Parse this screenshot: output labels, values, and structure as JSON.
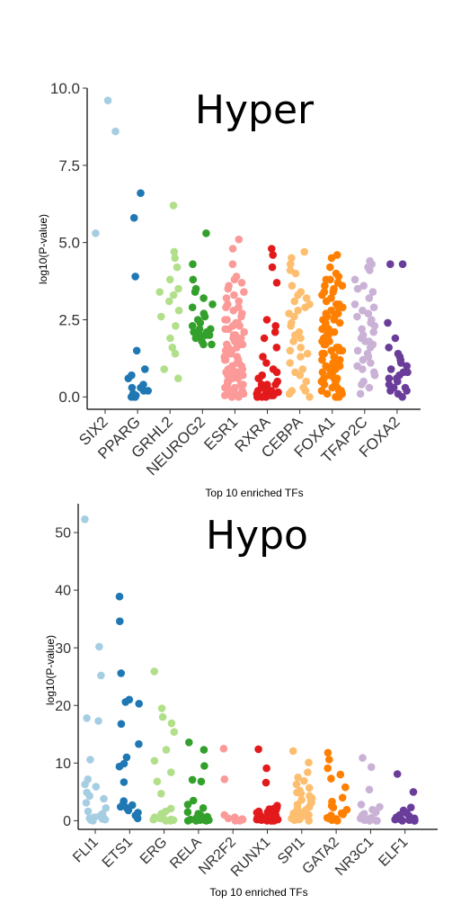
{
  "chart_data": [
    {
      "type": "scatter",
      "title": "Hyper",
      "xlabel": "Top 10 enriched TFs",
      "ylabel": "log10(P-value)",
      "ylim": [
        -0.4,
        10.0
      ],
      "yticks": [
        "0.0",
        "2.5",
        "5.0",
        "7.5",
        "10.0"
      ],
      "grid": false,
      "legend": "none",
      "categories": [
        "SIX2",
        "PPARG",
        "GRHL2",
        "NEUROG2",
        "ESR1",
        "RXRA",
        "CEBPA",
        "FOXA1",
        "TFAP2C",
        "FOXA2"
      ],
      "colors": [
        "#a6cee3",
        "#1f78b4",
        "#b2df8a",
        "#33a02c",
        "#fb9a99",
        "#e31a1c",
        "#fdbf6f",
        "#ff7f00",
        "#cab2d6",
        "#6a3d9a"
      ],
      "series": [
        {
          "points": [
            9.6,
            8.6,
            5.3
          ]
        },
        {
          "points": [
            6.6,
            5.8,
            3.9,
            1.5,
            0.9,
            0.7,
            0.6,
            0.4,
            0.3,
            0.2,
            0.1,
            0.05,
            0.0,
            0.0,
            0.1,
            0.2,
            0.0,
            0.3
          ]
        },
        {
          "points": [
            6.2,
            4.7,
            4.5,
            4.2,
            3.8,
            3.5,
            3.4,
            3.3,
            3.1,
            2.8,
            2.6,
            2.3,
            1.9,
            1.6,
            1.4,
            0.9,
            0.6
          ]
        },
        {
          "points": [
            5.3,
            4.3,
            3.8,
            3.5,
            3.4,
            3.2,
            3.0,
            2.7,
            2.5,
            2.3,
            2.2,
            2.1,
            2.0,
            2.0,
            1.9,
            1.8,
            1.7,
            2.2,
            2.4,
            2.6,
            1.7,
            2.9,
            2.0,
            2.1
          ]
        },
        {
          "points": [
            5.1,
            4.8,
            4.3,
            3.9,
            3.7,
            3.6,
            3.4,
            3.3,
            3.2,
            3.0,
            2.9,
            2.8,
            2.6,
            2.5,
            2.4,
            2.3,
            2.2,
            2.1,
            2.0,
            1.9,
            1.8,
            1.7,
            1.6,
            1.5,
            1.5,
            1.4,
            1.3,
            1.2,
            1.2,
            1.1,
            1.0,
            1.0,
            0.9,
            0.9,
            0.8,
            0.8,
            0.7,
            0.7,
            0.6,
            0.6,
            0.5,
            0.5,
            0.4,
            0.4,
            0.3,
            0.3,
            0.2,
            0.2,
            0.1,
            0.1,
            0.05,
            0.05,
            0.0,
            0.0,
            2.7,
            2.5,
            2.2,
            1.9,
            1.7,
            1.4,
            1.2,
            0.9,
            0.6,
            0.3,
            3.1,
            3.5,
            2.0,
            1.6,
            1.1,
            0.8,
            0.4,
            0.2,
            0.0,
            2.3,
            1.8,
            1.3,
            0.7,
            3.8,
            2.9,
            2.4
          ]
        },
        {
          "points": [
            4.8,
            4.6,
            4.2,
            3.7,
            2.5,
            2.3,
            2.1,
            1.9,
            1.6,
            1.3,
            1.1,
            0.9,
            0.8,
            0.7,
            0.6,
            0.5,
            0.4,
            0.4,
            0.3,
            0.3,
            0.2,
            0.2,
            0.15,
            0.1,
            0.1,
            0.05,
            0.05,
            0.0,
            0.0,
            0.0,
            0.6,
            0.2,
            0.3,
            0.1,
            0.0,
            0.4
          ]
        },
        {
          "points": [
            4.7,
            4.5,
            4.3,
            4.0,
            3.6,
            3.4,
            3.2,
            3.1,
            2.9,
            2.8,
            2.6,
            2.4,
            2.3,
            2.1,
            1.9,
            1.8,
            1.6,
            1.5,
            1.3,
            1.1,
            0.9,
            0.7,
            0.5,
            0.3,
            0.2,
            0.1,
            0.0,
            3.3,
            2.7,
            2.0,
            1.4,
            0.8,
            0.2,
            4.1,
            3.0
          ]
        },
        {
          "points": [
            4.6,
            4.5,
            4.2,
            4.0,
            3.9,
            3.8,
            3.7,
            3.6,
            3.5,
            3.4,
            3.3,
            3.2,
            3.1,
            3.0,
            2.9,
            2.8,
            2.7,
            2.6,
            2.5,
            2.4,
            2.3,
            2.2,
            2.1,
            2.0,
            1.9,
            1.8,
            1.7,
            1.6,
            1.5,
            1.4,
            1.3,
            1.2,
            1.1,
            1.0,
            0.9,
            0.8,
            0.7,
            0.6,
            0.5,
            0.4,
            0.3,
            0.2,
            0.1,
            0.0,
            2.5,
            2.2,
            1.9,
            1.6,
            1.3,
            1.0,
            0.7,
            0.4,
            0.1,
            3.4,
            3.0,
            2.7,
            2.4,
            2.1,
            1.8,
            1.5,
            1.2,
            0.9,
            0.6,
            0.3,
            0.0,
            2.0,
            1.7,
            1.4,
            1.1,
            0.8,
            0.5,
            0.2,
            2.9,
            2.6,
            2.3,
            1.0,
            0.2,
            3.8,
            3.6,
            1.5,
            0.6,
            0.0,
            2.4,
            1.9
          ]
        },
        {
          "points": [
            4.4,
            4.3,
            4.1,
            3.8,
            3.6,
            3.4,
            3.2,
            3.0,
            2.8,
            2.7,
            2.5,
            2.4,
            2.2,
            2.1,
            2.0,
            1.8,
            1.7,
            1.5,
            1.4,
            1.3,
            1.1,
            1.0,
            0.9,
            0.7,
            0.5,
            0.3,
            0.1,
            3.5,
            2.9,
            2.3,
            1.9,
            1.6,
            1.2,
            0.8,
            0.4,
            4.2,
            2.6,
            1.8
          ]
        },
        {
          "points": [
            4.3,
            4.3,
            2.4,
            1.9,
            1.6,
            1.4,
            1.2,
            1.0,
            0.9,
            0.8,
            0.7,
            0.6,
            0.5,
            0.4,
            0.3,
            0.2,
            0.1,
            0.0,
            1.1,
            0.6,
            0.3,
            0.8,
            0.2,
            1.3
          ]
        }
      ]
    },
    {
      "type": "scatter",
      "title": "Hypo",
      "xlabel": "Top 10 enriched TFs",
      "ylabel": "log10(P-value)",
      "ylim": [
        -1.5,
        55
      ],
      "yticks": [
        "0",
        "10",
        "20",
        "30",
        "40",
        "50"
      ],
      "grid": false,
      "legend": "none",
      "categories": [
        "FLI1",
        "ETS1",
        "ERG",
        "RELA",
        "NR2F2",
        "RUNX1",
        "SPI1",
        "GATA2",
        "NR3C1",
        "ELF1"
      ],
      "colors": [
        "#a6cee3",
        "#1f78b4",
        "#b2df8a",
        "#33a02c",
        "#fb9a99",
        "#e31a1c",
        "#fdbf6f",
        "#ff7f00",
        "#cab2d6",
        "#6a3d9a"
      ],
      "series": [
        {
          "points": [
            52.3,
            30.2,
            25.2,
            17.8,
            17.3,
            10.6,
            7.2,
            6.3,
            5.9,
            4.9,
            4.3,
            3.8,
            3.1,
            2.2,
            1.6,
            1.2,
            0.8,
            0.5,
            0.3,
            0.2,
            0.1,
            0.0,
            0.4,
            0.6
          ]
        },
        {
          "points": [
            38.9,
            34.6,
            25.6,
            21.0,
            20.6,
            20.3,
            16.8,
            13.3,
            11.0,
            9.9,
            9.4,
            6.7,
            3.4,
            3.0,
            2.7,
            2.4,
            2.2,
            1.8,
            1.4,
            0.9,
            0.4
          ]
        },
        {
          "points": [
            25.9,
            19.5,
            18.0,
            16.9,
            15.4,
            12.3,
            10.4,
            8.4,
            6.8,
            4.7,
            2.1,
            1.6,
            1.2,
            0.8,
            0.6,
            0.4,
            0.3,
            0.2,
            0.1,
            0.0,
            0.5,
            0.3,
            0.2,
            0.1,
            0.0
          ]
        },
        {
          "points": [
            13.6,
            12.3,
            9.5,
            7.1,
            6.8,
            3.5,
            2.8,
            2.2,
            1.5,
            1.2,
            0.9,
            0.7,
            0.5,
            0.4,
            0.3,
            0.2,
            0.2,
            0.1,
            0.1,
            0.0,
            0.0,
            0.0,
            0.3,
            0.5,
            0.2,
            0.1
          ]
        },
        {
          "points": [
            12.5,
            7.2,
            1.0,
            0.6,
            0.4,
            0.3,
            0.2,
            0.1,
            0.0,
            0.0
          ]
        },
        {
          "points": [
            12.4,
            9.1,
            6.6,
            2.6,
            2.3,
            2.0,
            1.8,
            1.5,
            1.3,
            1.1,
            0.9,
            0.8,
            0.7,
            0.6,
            0.5,
            0.4,
            0.4,
            0.3,
            0.3,
            0.2,
            0.2,
            0.1,
            0.1,
            0.0,
            0.0,
            0.0,
            1.6,
            1.2,
            0.9,
            0.6,
            0.3,
            0.0,
            2.1,
            1.4,
            0.8,
            0.2
          ]
        },
        {
          "points": [
            12.1,
            10.1,
            8.4,
            7.5,
            6.9,
            6.3,
            5.7,
            5.2,
            4.7,
            4.3,
            3.9,
            3.5,
            3.1,
            2.8,
            2.5,
            2.2,
            1.9,
            1.6,
            1.3,
            1.0,
            0.8,
            0.6,
            0.4,
            0.2,
            0.1,
            0.0,
            4.9,
            3.6,
            2.4,
            1.5,
            0.7,
            0.3
          ]
        },
        {
          "points": [
            11.8,
            10.6,
            9.1,
            8.0,
            7.3,
            5.8,
            4.0,
            3.3,
            2.6,
            1.9,
            1.3,
            0.9,
            0.5,
            0.3,
            0.1,
            0.0,
            2.3,
            1.1,
            0.4
          ]
        },
        {
          "points": [
            10.9,
            9.3,
            5.4,
            2.8,
            2.4,
            1.9,
            1.5,
            1.2,
            0.9,
            0.7,
            0.5,
            0.3,
            0.2,
            0.1,
            0.0,
            0.0,
            0.4,
            0.2,
            0.1,
            0.0
          ]
        },
        {
          "points": [
            8.1,
            5.0,
            2.3,
            1.8,
            1.3,
            1.0,
            0.8,
            0.6,
            0.4,
            0.3,
            0.2,
            0.1,
            0.0,
            0.0,
            0.5,
            0.2,
            0.1,
            0.0
          ]
        }
      ]
    }
  ]
}
